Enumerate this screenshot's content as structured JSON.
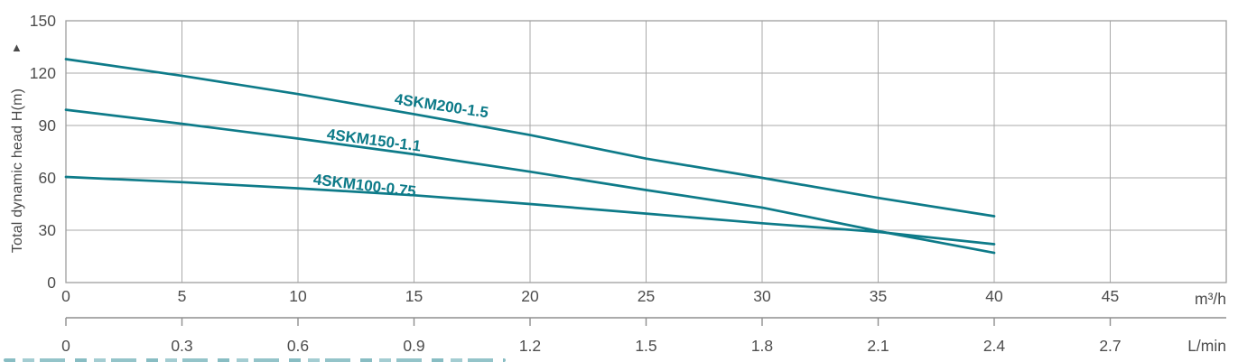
{
  "colors": {
    "curve": "#0e7b89",
    "curve_label": "#0c7a88",
    "grid": "#a9a9a9",
    "border": "#9e9e9e",
    "axis_line": "#8f8f8f",
    "axis_text": "#4d4d4d"
  },
  "y_axis": {
    "title": "Total dynamic head H(m)",
    "arrow_icon": "▲",
    "tick_labels": [
      "0",
      "30",
      "60",
      "90",
      "120",
      "150"
    ]
  },
  "x_axis_primary": {
    "unit_label": "m³/h",
    "tick_labels": [
      "0",
      "5",
      "10",
      "15",
      "20",
      "25",
      "30",
      "35",
      "40",
      "45"
    ]
  },
  "x_axis_secondary": {
    "unit_label": "L/min",
    "tick_labels": [
      "0",
      "0.3",
      "0.6",
      "0.9",
      "1.2",
      "1.5",
      "1.8",
      "2.1",
      "2.4",
      "2.7"
    ]
  },
  "chart_data": {
    "type": "line",
    "title": "",
    "ylabel": "Total dynamic head H(m)",
    "xlabel_primary": "m³/h",
    "xlabel_secondary": "L/min",
    "ylim": [
      0,
      150
    ],
    "xlim": [
      0,
      50
    ],
    "y_ticks": [
      0,
      30,
      60,
      90,
      120,
      150
    ],
    "x_ticks_primary": [
      0,
      5,
      10,
      15,
      20,
      25,
      30,
      35,
      40,
      45
    ],
    "x_ticks_secondary": [
      0,
      0.3,
      0.6,
      0.9,
      1.2,
      1.5,
      1.8,
      2.1,
      2.4,
      2.7
    ],
    "grid": true,
    "legend_position": "inline-labels",
    "x": [
      0,
      5,
      10,
      15,
      20,
      25,
      30,
      35,
      40
    ],
    "series": [
      {
        "name": "4SKM200-1.5",
        "values": [
          128,
          118.5,
          108,
          96.5,
          84.5,
          71,
          60,
          48.5,
          38
        ]
      },
      {
        "name": "4SKM150-1.1",
        "values": [
          99,
          91,
          82.5,
          73.5,
          63.5,
          53,
          43,
          29.5,
          17
        ]
      },
      {
        "name": "4SKM100-0.75",
        "values": [
          60.5,
          57.5,
          54,
          50,
          45,
          39.5,
          34,
          29,
          22
        ]
      }
    ]
  }
}
